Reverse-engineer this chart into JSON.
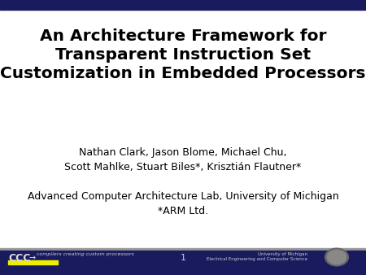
{
  "bg_color": "#ffffff",
  "navy_color": "#1a1a5e",
  "gray_line_color": "#999999",
  "yellow_color": "#eeee00",
  "title_line1": "An Architecture Framework for",
  "title_line2": "Transparent Instruction Set",
  "title_line3": "Customization in Embedded Processors",
  "authors_line1": "Nathan Clark, Jason Blome, Michael Chu,",
  "authors_line2": "Scott Mahlke, Stuart Biles*, Krisztián Flautner*",
  "affil_line1": "Advanced Computer Architecture Lab, University of Michigan",
  "affil_line2": "*ARM Ltd.",
  "footer_sub": "compilers creating custom processors",
  "footer_center": "1",
  "footer_right_line1": "University of Michigan",
  "footer_right_line2": "Electrical Engineering and Computer Science",
  "title_fontsize": 14.5,
  "authors_fontsize": 9,
  "affil_fontsize": 9,
  "title_color": "#000000",
  "authors_color": "#000000",
  "affil_color": "#000000"
}
